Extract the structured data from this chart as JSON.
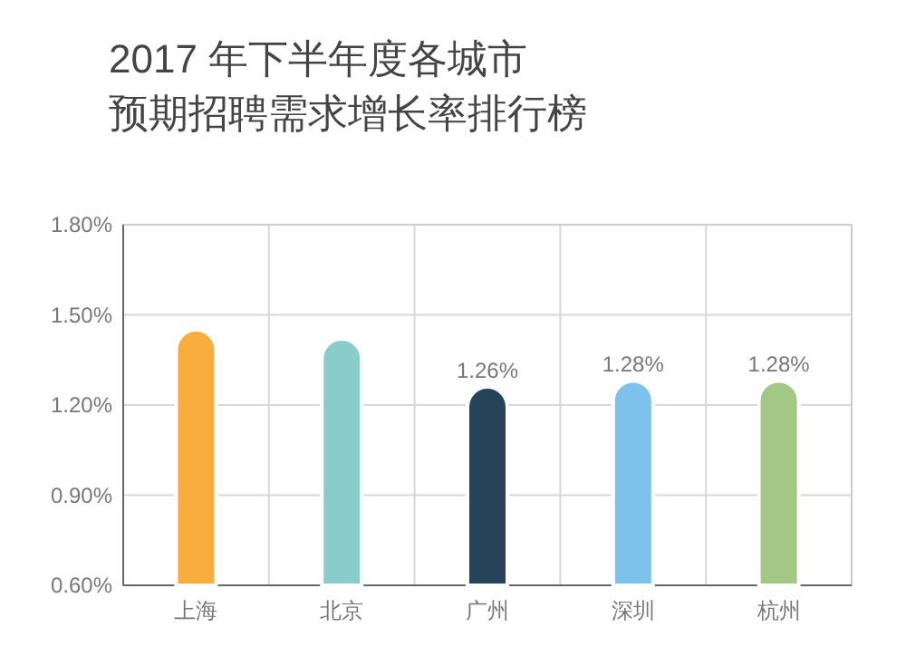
{
  "chart_data": {
    "type": "bar",
    "title": "2017 年下半年度各城市",
    "subtitle": "预期招聘需求增长率排行榜",
    "categories": [
      "上海",
      "北京",
      "广州",
      "深圳",
      "杭州"
    ],
    "values": [
      1.45,
      1.42,
      1.26,
      1.28,
      1.28
    ],
    "value_labels": [
      null,
      null,
      "1.26%",
      "1.28%",
      "1.28%"
    ],
    "colors": [
      "#f8ad3c",
      "#88cdc9",
      "#27435a",
      "#7cc2ea",
      "#a3c785"
    ],
    "ylim": [
      0.6,
      1.8
    ],
    "yticks": [
      {
        "value": 0.6,
        "label": "0.60%"
      },
      {
        "value": 0.9,
        "label": "0.90%"
      },
      {
        "value": 1.2,
        "label": "1.20%"
      },
      {
        "value": 1.5,
        "label": "1.50%"
      },
      {
        "value": 1.8,
        "label": "1.80%"
      }
    ],
    "grid": true
  }
}
